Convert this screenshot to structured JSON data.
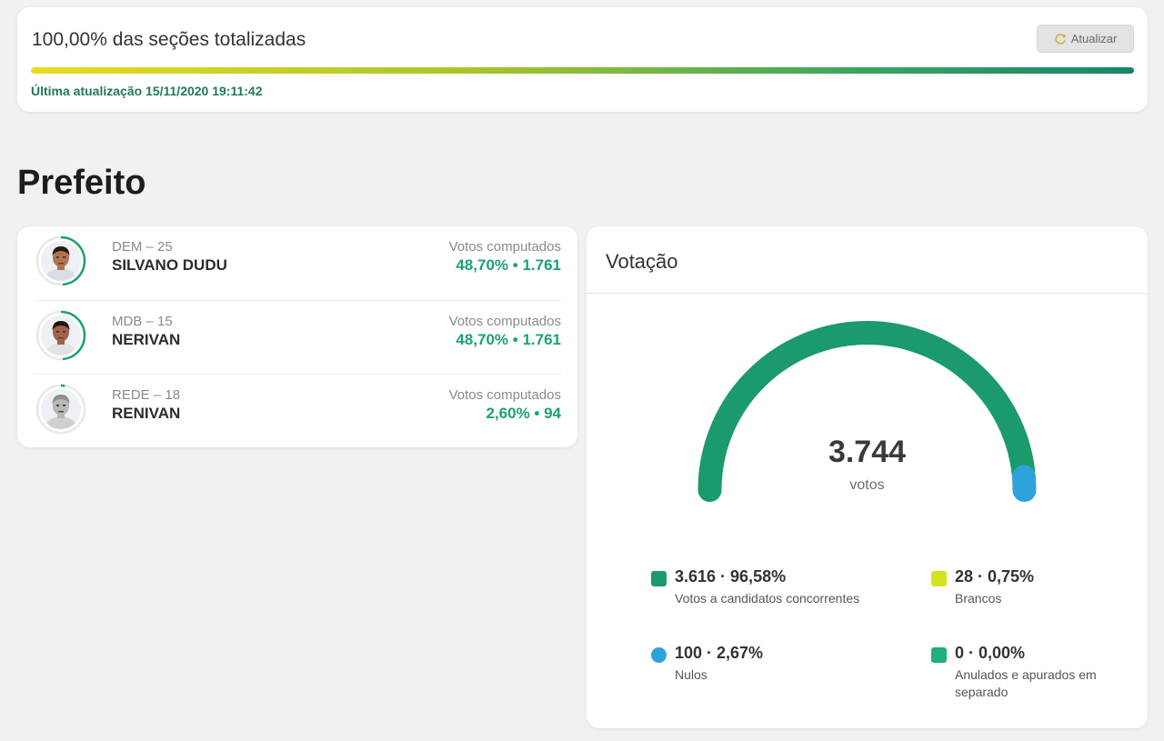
{
  "status": {
    "title": "100,00% das seções totalizadas",
    "progress_percent": 100,
    "last_update": "Última atualização 15/11/2020 19:11:42",
    "refresh_label": "Atualizar",
    "refresh_icon": "refresh-icon"
  },
  "section": {
    "title": "Prefeito"
  },
  "candidates": [
    {
      "party": "DEM – 25",
      "name": "SILVANO DUDU",
      "votes_label": "Votos computados",
      "votes": "48,70% • 1.761",
      "share": 0.487,
      "avatar_icon": "candidate-photo",
      "skin": "#b27350",
      "hair": "#231a14",
      "shirt": "#d8dce6"
    },
    {
      "party": "MDB – 15",
      "name": "NERIVAN",
      "votes_label": "Votos computados",
      "votes": "48,70% • 1.761",
      "share": 0.487,
      "avatar_icon": "candidate-photo",
      "skin": "#a2624a",
      "hair": "#1d1510",
      "shirt": "#e2e2e2"
    },
    {
      "party": "REDE – 18",
      "name": "RENIVAN",
      "votes_label": "Votos computados",
      "votes": "2,60% • 94",
      "share": 0.026,
      "avatar_icon": "candidate-photo",
      "skin": "#b7b7b7",
      "hair": "#8e8e8e",
      "shirt": "#cfcfcf",
      "grayscale": true
    }
  ],
  "votacao": {
    "title": "Votação",
    "total": "3.744",
    "total_unit": "votos",
    "legend": [
      {
        "value": "3.616 · 96,58%",
        "label": "Votos a candidatos concorrentes",
        "color": "#1b9a6b",
        "shape": "square",
        "share": 0.9658
      },
      {
        "value": "28 · 0,75%",
        "label": "Brancos",
        "color": "#d6e21e",
        "shape": "square",
        "share": 0.0075
      },
      {
        "value": "100 · 2,67%",
        "label": "Nulos",
        "color": "#2fa2dc",
        "shape": "circle",
        "share": 0.0267
      },
      {
        "value": "0 · 0,00%",
        "label": "Anulados e apurados em separado",
        "color": "#22ad83",
        "shape": "square",
        "share": 0
      }
    ]
  },
  "colors": {
    "accent": "#1ba07a",
    "ring_track": "#e8e8e8"
  }
}
